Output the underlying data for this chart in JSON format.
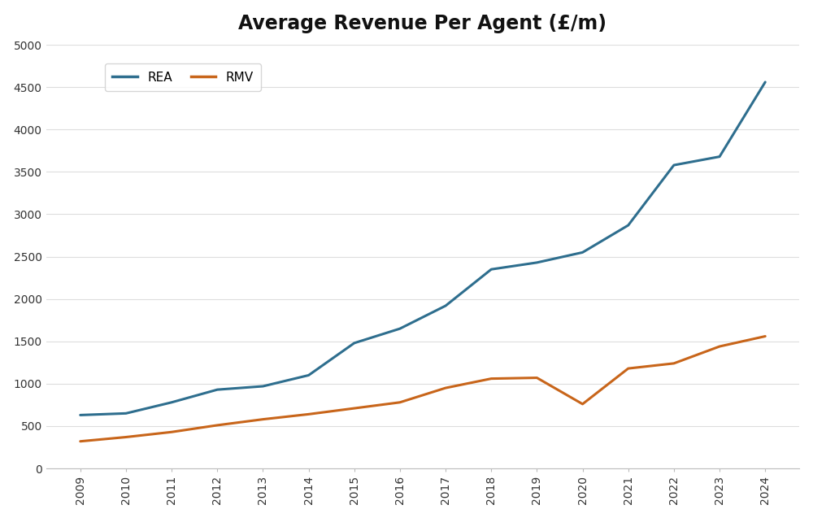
{
  "title": "Average Revenue Per Agent (£/m)",
  "years": [
    2009,
    2010,
    2011,
    2012,
    2013,
    2014,
    2015,
    2016,
    2017,
    2018,
    2019,
    2020,
    2021,
    2022,
    2023,
    2024
  ],
  "rea_values": [
    630,
    650,
    780,
    930,
    970,
    1100,
    1480,
    1650,
    1920,
    2350,
    2430,
    2550,
    2870,
    3580,
    3680,
    4560
  ],
  "rmv_values": [
    320,
    370,
    430,
    510,
    580,
    640,
    710,
    780,
    950,
    1060,
    1070,
    760,
    1180,
    1240,
    1440,
    1560
  ],
  "rea_color": "#2e6e8e",
  "rmv_color": "#c8651a",
  "rea_label": "REA",
  "rmv_label": "RMV",
  "ylim": [
    0,
    5000
  ],
  "yticks": [
    0,
    500,
    1000,
    1500,
    2000,
    2500,
    3000,
    3500,
    4000,
    4500,
    5000
  ],
  "background_color": "#ffffff",
  "title_fontsize": 17,
  "tick_fontsize": 10,
  "legend_fontsize": 11,
  "line_width": 2.2
}
